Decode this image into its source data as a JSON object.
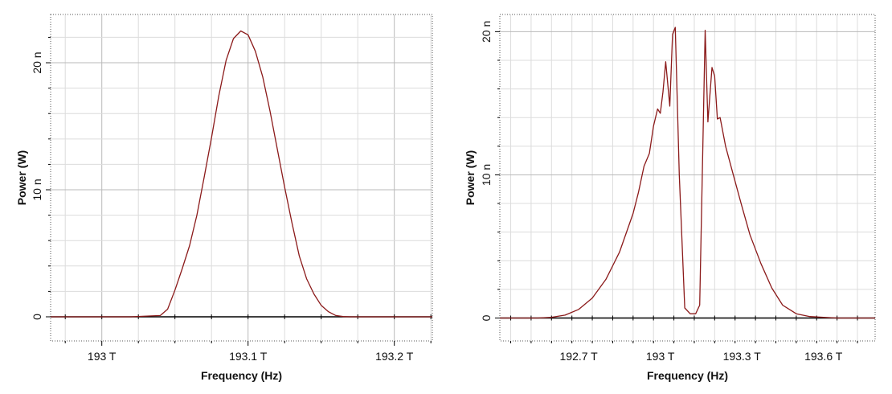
{
  "chart_data": [
    {
      "type": "line",
      "title": "",
      "xlabel": "Frequency (Hz)",
      "ylabel": "Power (W)",
      "xlim": [
        192.965,
        193.226
      ],
      "ylim": [
        -1.9,
        23.8
      ],
      "xticks": [
        {
          "value": 193.0,
          "label": "193 T"
        },
        {
          "value": 193.1,
          "label": "193.1 T"
        },
        {
          "value": 193.2,
          "label": "193.2 T"
        }
      ],
      "yticks": [
        {
          "value": 0,
          "label": "0"
        },
        {
          "value": 10,
          "label": "10 n"
        },
        {
          "value": 20,
          "label": "20 n"
        }
      ],
      "grid": true,
      "line_color": "#8b1a1a",
      "series": [
        {
          "x": [
            192.965,
            193.0,
            193.02,
            193.04,
            193.045,
            193.05,
            193.055,
            193.06,
            193.065,
            193.07,
            193.075,
            193.08,
            193.085,
            193.09,
            193.095,
            193.1,
            193.105,
            193.11,
            193.115,
            193.12,
            193.125,
            193.13,
            193.135,
            193.14,
            193.145,
            193.15,
            193.155,
            193.16,
            193.165,
            193.17,
            193.2,
            193.226
          ],
          "y": [
            0,
            0,
            0,
            0.1,
            0.6,
            2.1,
            3.8,
            5.6,
            8.0,
            11.0,
            14.1,
            17.4,
            20.2,
            21.9,
            22.5,
            22.2,
            20.9,
            18.9,
            16.2,
            13.2,
            10.2,
            7.4,
            4.8,
            3.0,
            1.8,
            0.9,
            0.4,
            0.1,
            0.02,
            0,
            0,
            0
          ]
        }
      ]
    },
    {
      "type": "line",
      "title": "",
      "xlabel": "Frequency (Hz)",
      "ylabel": "Power (W)",
      "xlim": [
        192.41,
        193.79
      ],
      "ylim": [
        -1.6,
        21.2
      ],
      "xticks": [
        {
          "value": 192.7,
          "label": "192.7 T"
        },
        {
          "value": 193.0,
          "label": "193 T"
        },
        {
          "value": 193.3,
          "label": "193.3 T"
        },
        {
          "value": 193.6,
          "label": "193.6 T"
        }
      ],
      "yticks": [
        {
          "value": 0,
          "label": "0"
        },
        {
          "value": 10,
          "label": "10 n"
        },
        {
          "value": 20,
          "label": "20 n"
        }
      ],
      "grid": true,
      "line_color": "#8b1a1a",
      "series": [
        {
          "x": [
            192.41,
            192.55,
            192.6,
            192.65,
            192.7,
            192.75,
            192.8,
            192.85,
            192.9,
            192.92,
            192.94,
            192.96,
            192.975,
            192.99,
            193.0,
            193.01,
            193.02,
            193.035,
            193.045,
            193.055,
            193.07,
            193.09,
            193.11,
            193.13,
            193.145,
            193.155,
            193.165,
            193.175,
            193.19,
            193.2,
            193.21,
            193.22,
            193.24,
            193.27,
            193.3,
            193.33,
            193.37,
            193.41,
            193.45,
            193.5,
            193.55,
            193.6,
            193.65,
            193.79
          ],
          "y": [
            0,
            0,
            0.05,
            0.2,
            0.6,
            1.4,
            2.7,
            4.6,
            7.3,
            8.8,
            10.6,
            11.5,
            13.4,
            14.6,
            14.3,
            15.8,
            17.9,
            14.8,
            19.8,
            20.3,
            10.0,
            0.7,
            0.3,
            0.3,
            0.9,
            10.5,
            20.1,
            13.7,
            17.5,
            16.9,
            13.9,
            14.0,
            12.0,
            9.9,
            7.8,
            5.8,
            3.8,
            2.1,
            0.9,
            0.3,
            0.1,
            0.05,
            0,
            0
          ]
        }
      ]
    }
  ]
}
